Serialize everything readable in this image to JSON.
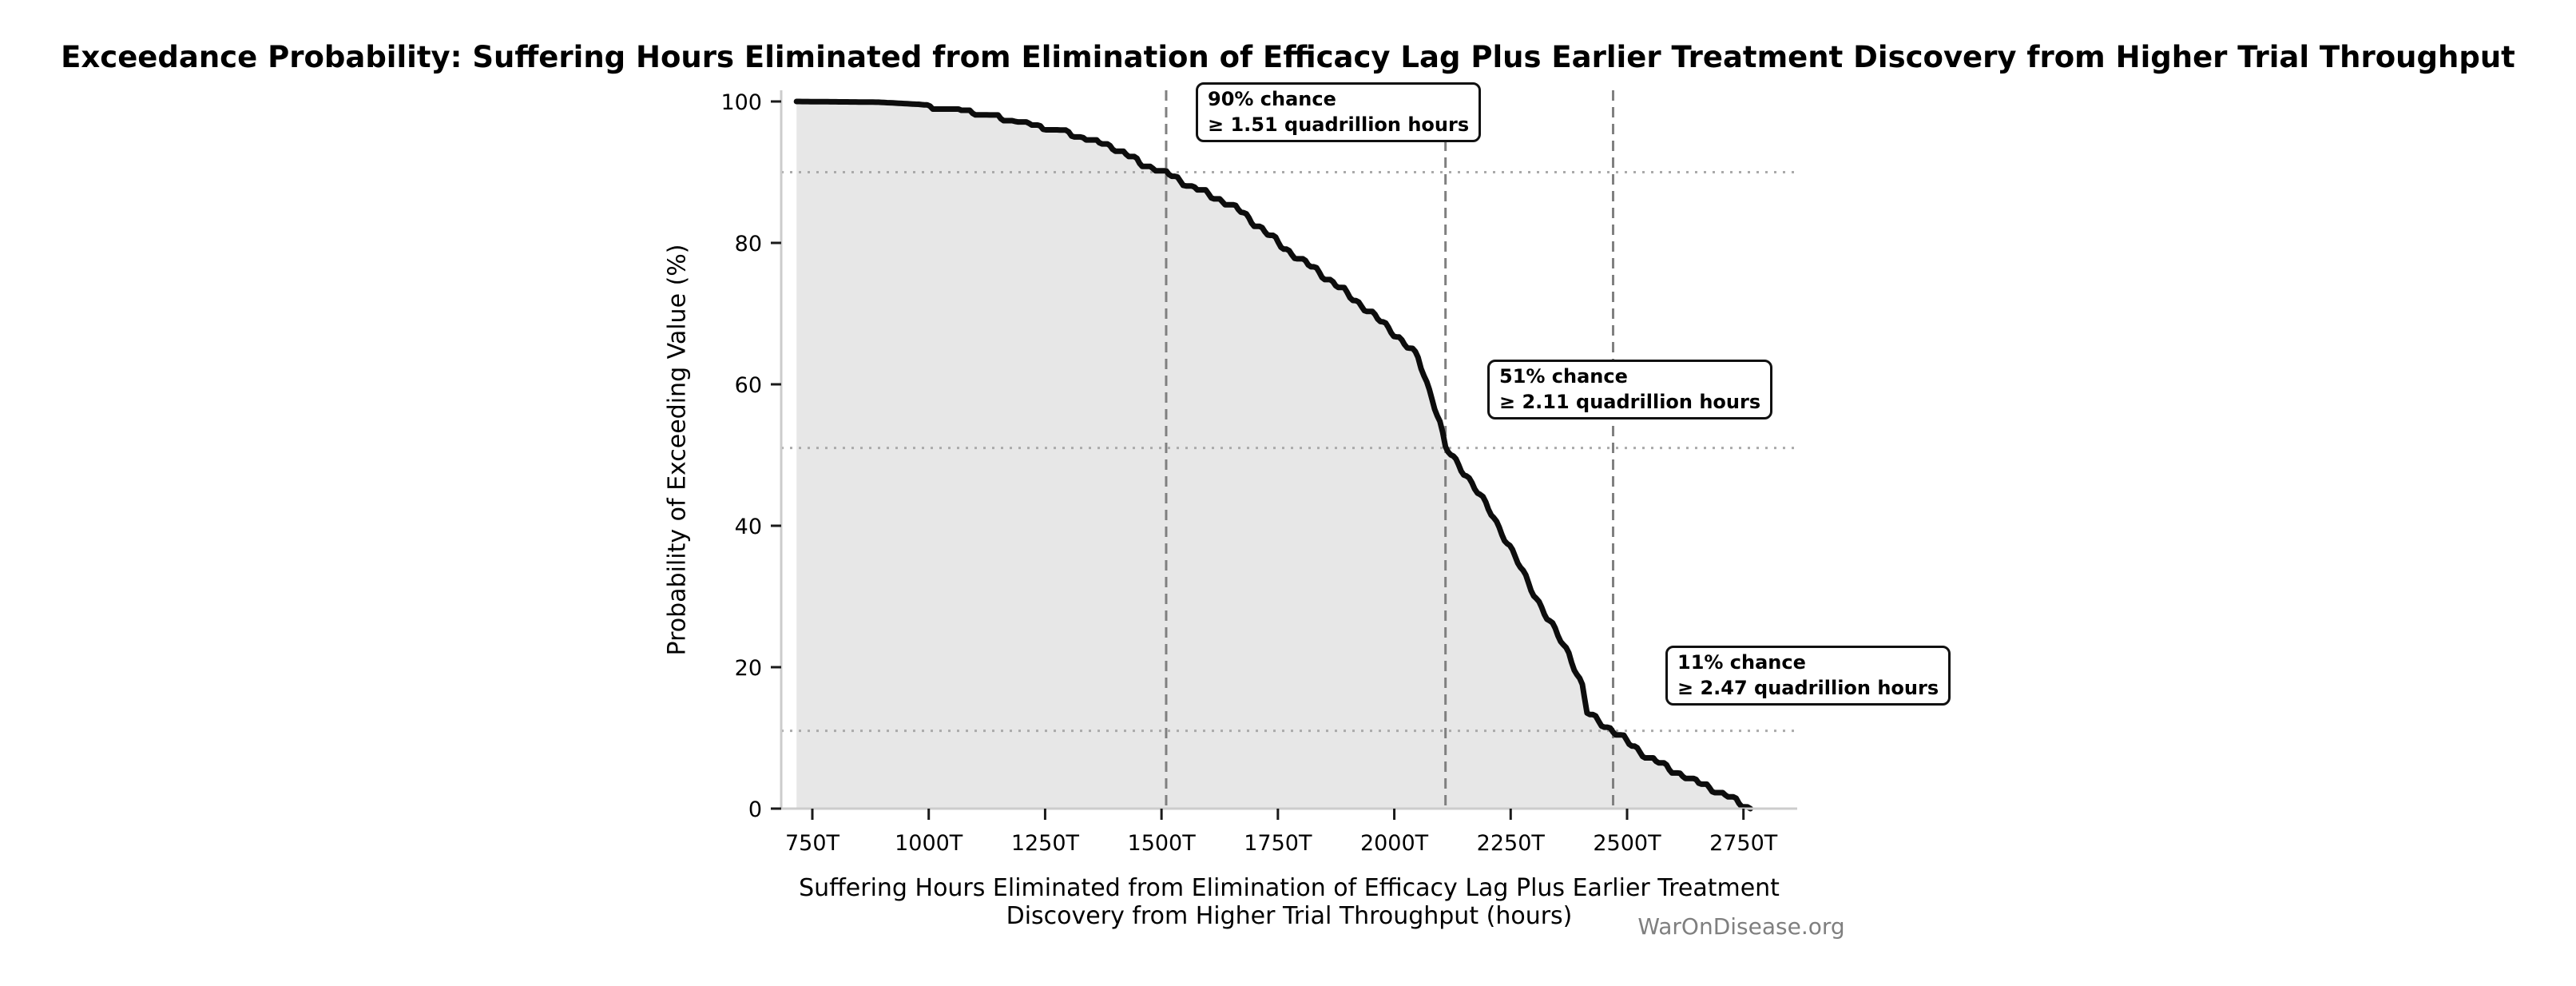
{
  "chart_data": {
    "type": "area",
    "title": "Exceedance Probability: Suffering Hours Eliminated from Elimination of Efficacy Lag Plus Earlier Treatment Discovery from Higher Trial Throughput",
    "xlabel": "Suffering Hours Eliminated from Elimination of Efficacy Lag Plus Earlier Treatment Discovery from Higher Trial Throughput (hours)",
    "ylabel": "Probability of Exceeding Value (%)",
    "watermark": "WarOnDisease.org",
    "x_ticks": [
      {
        "value": 750,
        "label": "750T"
      },
      {
        "value": 1000,
        "label": "1000T"
      },
      {
        "value": 1250,
        "label": "1250T"
      },
      {
        "value": 1500,
        "label": "1500T"
      },
      {
        "value": 1750,
        "label": "1750T"
      },
      {
        "value": 2000,
        "label": "2000T"
      },
      {
        "value": 2250,
        "label": "2250T"
      },
      {
        "value": 2500,
        "label": "2500T"
      },
      {
        "value": 2750,
        "label": "2750T"
      }
    ],
    "y_ticks": [
      0,
      20,
      40,
      60,
      80,
      100
    ],
    "ylim": [
      0,
      100
    ],
    "x_unit": "trillions of hours",
    "grid": {
      "horizontal_dotted_at_pct": [
        90,
        51,
        11
      ],
      "vertical_dashed_at_value": [
        1510,
        2110,
        2470
      ]
    },
    "legend": "none",
    "series": [
      {
        "name": "exceedance-probability-curve",
        "points": [
          [
            716,
            100
          ],
          [
            892,
            99.9
          ],
          [
            978,
            99.6
          ],
          [
            1064,
            99.1
          ],
          [
            1167,
            97.7
          ],
          [
            1282,
            96.0
          ],
          [
            1338,
            94.9
          ],
          [
            1395,
            93.7
          ],
          [
            1453,
            91.4
          ],
          [
            1510,
            90.0
          ],
          [
            1565,
            88.0
          ],
          [
            1625,
            86.2
          ],
          [
            1665,
            84.8
          ],
          [
            1722,
            81.6
          ],
          [
            1780,
            78.5
          ],
          [
            1833,
            76.2
          ],
          [
            1880,
            73.8
          ],
          [
            1930,
            71.2
          ],
          [
            1993,
            67.7
          ],
          [
            2051,
            63.8
          ],
          [
            2064,
            61.3
          ],
          [
            2081,
            58.2
          ],
          [
            2098,
            54.5
          ],
          [
            2110,
            51.0
          ],
          [
            2155,
            47.2
          ],
          [
            2214,
            41.2
          ],
          [
            2271,
            34.1
          ],
          [
            2328,
            27.0
          ],
          [
            2375,
            22.0
          ],
          [
            2404,
            17.2
          ],
          [
            2414,
            13.6
          ],
          [
            2470,
            11.0
          ],
          [
            2539,
            7.6
          ],
          [
            2608,
            5.1
          ],
          [
            2677,
            3.1
          ],
          [
            2728,
            1.4
          ],
          [
            2765,
            0
          ]
        ]
      }
    ],
    "annotations": [
      {
        "line1": "90% chance",
        "line2": "≥ 1.51 quadrillion hours",
        "probability_pct": 90,
        "value": 1510
      },
      {
        "line1": "51% chance",
        "line2": "≥ 2.11 quadrillion hours",
        "probability_pct": 51,
        "value": 2110
      },
      {
        "line1": "11% chance",
        "line2": "≥ 2.47 quadrillion hours",
        "probability_pct": 11,
        "value": 2470
      }
    ],
    "colors": {
      "curve": "#0d0d0d",
      "fill": "#e7e7e7",
      "dashed_line": "#808080",
      "dotted_line": "#aaaaaa",
      "spine": "#cccccc",
      "tick": "#1a1a1a",
      "watermark": "#7f7f7f"
    }
  }
}
